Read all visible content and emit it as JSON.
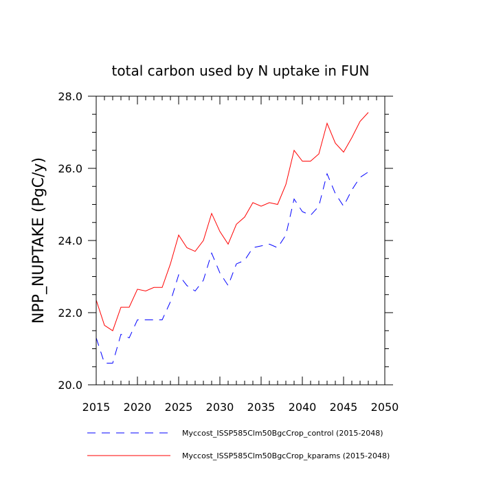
{
  "chart_data": {
    "type": "line",
    "title": "total carbon used by N uptake in FUN",
    "xlabel": "",
    "ylabel": "NPP_NUPTAKE  (PgC/y)",
    "xlim": [
      2015,
      2050
    ],
    "ylim": [
      20.0,
      28.0
    ],
    "x_ticks": [
      2015,
      2020,
      2025,
      2030,
      2035,
      2040,
      2045,
      2050
    ],
    "x_tick_labels": [
      "2015",
      "2020",
      "2025",
      "2030",
      "2035",
      "2040",
      "2045",
      "2050"
    ],
    "y_ticks": [
      20.0,
      22.0,
      24.0,
      26.0,
      28.0
    ],
    "y_tick_labels": [
      "20.0",
      "22.0",
      "24.0",
      "26.0",
      "28.0"
    ],
    "x": [
      2015,
      2016,
      2017,
      2018,
      2019,
      2020,
      2021,
      2022,
      2023,
      2024,
      2025,
      2026,
      2027,
      2028,
      2029,
      2030,
      2031,
      2032,
      2033,
      2034,
      2035,
      2036,
      2037,
      2038,
      2039,
      2040,
      2041,
      2042,
      2043,
      2044,
      2045,
      2046,
      2047,
      2048
    ],
    "series": [
      {
        "name": "Myccost_ISSP585Clm50BgcCrop_control (2015-2048)",
        "color": "#0000ff",
        "style": "dashed",
        "values": [
          21.3,
          20.6,
          20.6,
          21.4,
          21.3,
          21.8,
          21.8,
          21.8,
          21.8,
          22.3,
          23.05,
          22.75,
          22.6,
          22.9,
          23.65,
          23.1,
          22.75,
          23.35,
          23.45,
          23.8,
          23.85,
          23.9,
          23.8,
          24.15,
          25.15,
          24.8,
          24.7,
          24.95,
          25.85,
          25.3,
          24.95,
          25.4,
          25.75,
          25.9
        ]
      },
      {
        "name": "Myccost_ISSP585Clm50BgcCrop_kparams (2015-2048)",
        "color": "#ff0000",
        "style": "solid",
        "values": [
          22.35,
          21.65,
          21.5,
          22.15,
          22.15,
          22.65,
          22.6,
          22.7,
          22.7,
          23.35,
          24.15,
          23.8,
          23.7,
          24.0,
          24.75,
          24.25,
          23.9,
          24.45,
          24.65,
          25.05,
          24.95,
          25.05,
          25.0,
          25.55,
          26.5,
          26.2,
          26.2,
          26.4,
          27.25,
          26.7,
          26.45,
          26.85,
          27.3,
          27.55
        ]
      }
    ]
  }
}
